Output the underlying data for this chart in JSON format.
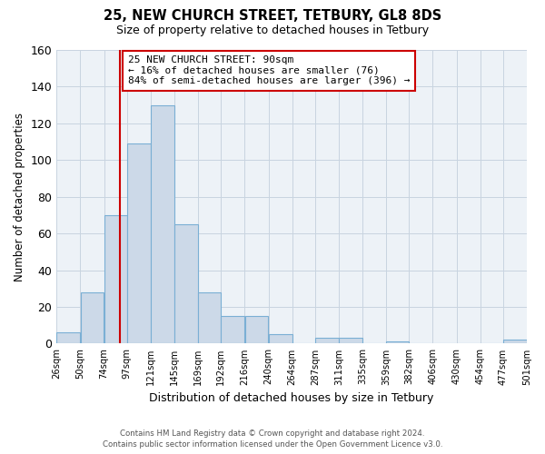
{
  "title": "25, NEW CHURCH STREET, TETBURY, GL8 8DS",
  "subtitle": "Size of property relative to detached houses in Tetbury",
  "xlabel": "Distribution of detached houses by size in Tetbury",
  "ylabel": "Number of detached properties",
  "bar_color": "#ccd9e8",
  "bar_edge_color": "#7aafd4",
  "bin_edges": [
    26,
    50,
    74,
    97,
    121,
    145,
    169,
    192,
    216,
    240,
    264,
    287,
    311,
    335,
    359,
    382,
    406,
    430,
    454,
    477,
    501
  ],
  "bar_heights": [
    6,
    28,
    70,
    109,
    130,
    65,
    28,
    15,
    15,
    5,
    0,
    3,
    3,
    0,
    1,
    0,
    0,
    0,
    0,
    2
  ],
  "tick_labels": [
    "26sqm",
    "50sqm",
    "74sqm",
    "97sqm",
    "121sqm",
    "145sqm",
    "169sqm",
    "192sqm",
    "216sqm",
    "240sqm",
    "264sqm",
    "287sqm",
    "311sqm",
    "335sqm",
    "359sqm",
    "382sqm",
    "406sqm",
    "430sqm",
    "454sqm",
    "477sqm",
    "501sqm"
  ],
  "vline_x": 90,
  "vline_color": "#cc0000",
  "ylim": [
    0,
    160
  ],
  "yticks": [
    0,
    20,
    40,
    60,
    80,
    100,
    120,
    140,
    160
  ],
  "annotation_title": "25 NEW CHURCH STREET: 90sqm",
  "annotation_line1": "← 16% of detached houses are smaller (76)",
  "annotation_line2": "84% of semi-detached houses are larger (396) →",
  "annotation_box_color": "#ffffff",
  "annotation_box_edge": "#cc0000",
  "footnote1": "Contains HM Land Registry data © Crown copyright and database right 2024.",
  "footnote2": "Contains public sector information licensed under the Open Government Licence v3.0.",
  "grid_color": "#c8d4e0",
  "background_color": "#edf2f7"
}
